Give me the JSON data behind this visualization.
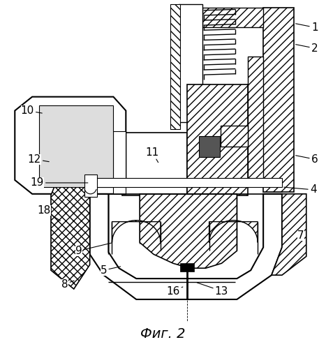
{
  "title": "Фиг. 2",
  "bg_color": "#ffffff",
  "fig_width": 4.67,
  "fig_height": 5.0,
  "dpi": 100,
  "labels": [
    [
      "1",
      452,
      38
    ],
    [
      "2",
      452,
      68
    ],
    [
      "4",
      450,
      272
    ],
    [
      "5",
      148,
      388
    ],
    [
      "6",
      452,
      228
    ],
    [
      "7",
      432,
      338
    ],
    [
      "8",
      92,
      408
    ],
    [
      "9",
      112,
      360
    ],
    [
      "10",
      38,
      158
    ],
    [
      "11",
      218,
      218
    ],
    [
      "12",
      48,
      228
    ],
    [
      "13",
      318,
      418
    ],
    [
      "16",
      248,
      418
    ],
    [
      "18",
      62,
      302
    ],
    [
      "19",
      52,
      262
    ]
  ]
}
